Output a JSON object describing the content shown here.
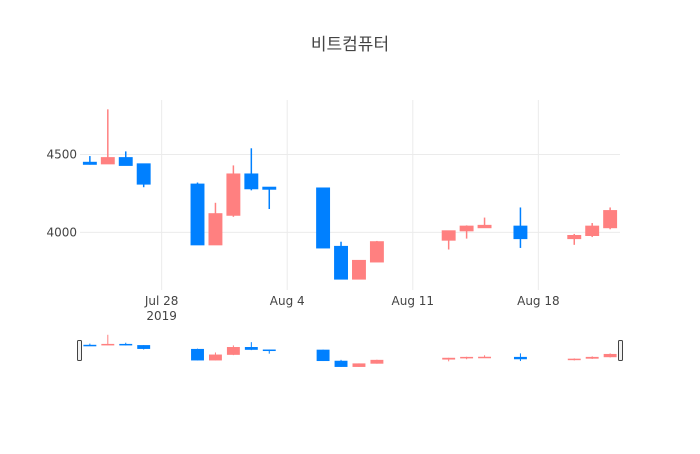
{
  "chart_data": {
    "type": "candlestick",
    "title": "비트컴퓨터",
    "xlabel": "",
    "ylabel": "",
    "x_range": [
      "2019-07-24",
      "2019-08-22"
    ],
    "ylim": [
      3630,
      4850
    ],
    "y_ticks": [
      4000,
      4500
    ],
    "y_tick_labels": [
      "4000",
      "4500"
    ],
    "x_ticks": [
      "2019-07-28",
      "2019-08-04",
      "2019-08-11",
      "2019-08-18"
    ],
    "x_tick_labels": [
      "Jul 28",
      "Aug 4",
      "Aug 11",
      "Aug 18"
    ],
    "x_year_label": "2019",
    "grid": true,
    "legend": "none",
    "rangeslider": true,
    "colors": {
      "increasing": "#FF8080",
      "decreasing": "#0080FF",
      "grid": "#EBEBEB",
      "title": "#444444",
      "tick_text": "#444444"
    },
    "candles": [
      {
        "date": "2019-07-24",
        "open": 4450,
        "high": 4490,
        "low": 4435,
        "close": 4440
      },
      {
        "date": "2019-07-25",
        "open": 4440,
        "high": 4790,
        "low": 4440,
        "close": 4480
      },
      {
        "date": "2019-07-26",
        "open": 4480,
        "high": 4520,
        "low": 4430,
        "close": 4430
      },
      {
        "date": "2019-07-27",
        "open": 4440,
        "high": 4440,
        "low": 4290,
        "close": 4310
      },
      {
        "date": "2019-07-30",
        "open": 4310,
        "high": 4320,
        "low": 3920,
        "close": 3920
      },
      {
        "date": "2019-07-31",
        "open": 3920,
        "high": 4190,
        "low": 3920,
        "close": 4120
      },
      {
        "date": "2019-08-01",
        "open": 4110,
        "high": 4430,
        "low": 4100,
        "close": 4375
      },
      {
        "date": "2019-08-02",
        "open": 4375,
        "high": 4540,
        "low": 4270,
        "close": 4280
      },
      {
        "date": "2019-08-03",
        "open": 4290,
        "high": 4290,
        "low": 4150,
        "close": 4280
      },
      {
        "date": "2019-08-06",
        "open": 4285,
        "high": 4285,
        "low": 3900,
        "close": 3900
      },
      {
        "date": "2019-08-07",
        "open": 3910,
        "high": 3940,
        "low": 3700,
        "close": 3700
      },
      {
        "date": "2019-08-08",
        "open": 3700,
        "high": 3820,
        "low": 3700,
        "close": 3820
      },
      {
        "date": "2019-08-09",
        "open": 3810,
        "high": 3945,
        "low": 3810,
        "close": 3940
      },
      {
        "date": "2019-08-13",
        "open": 3950,
        "high": 4010,
        "low": 3890,
        "close": 4010
      },
      {
        "date": "2019-08-14",
        "open": 4010,
        "high": 4045,
        "low": 3960,
        "close": 4040
      },
      {
        "date": "2019-08-15",
        "open": 4030,
        "high": 4095,
        "low": 4030,
        "close": 4045
      },
      {
        "date": "2019-08-17",
        "open": 4040,
        "high": 4160,
        "low": 3900,
        "close": 3960
      },
      {
        "date": "2019-08-20",
        "open": 3960,
        "high": 3990,
        "low": 3920,
        "close": 3980
      },
      {
        "date": "2019-08-21",
        "open": 3980,
        "high": 4060,
        "low": 3970,
        "close": 4040
      },
      {
        "date": "2019-08-22",
        "open": 4030,
        "high": 4160,
        "low": 4020,
        "close": 4140
      }
    ]
  }
}
